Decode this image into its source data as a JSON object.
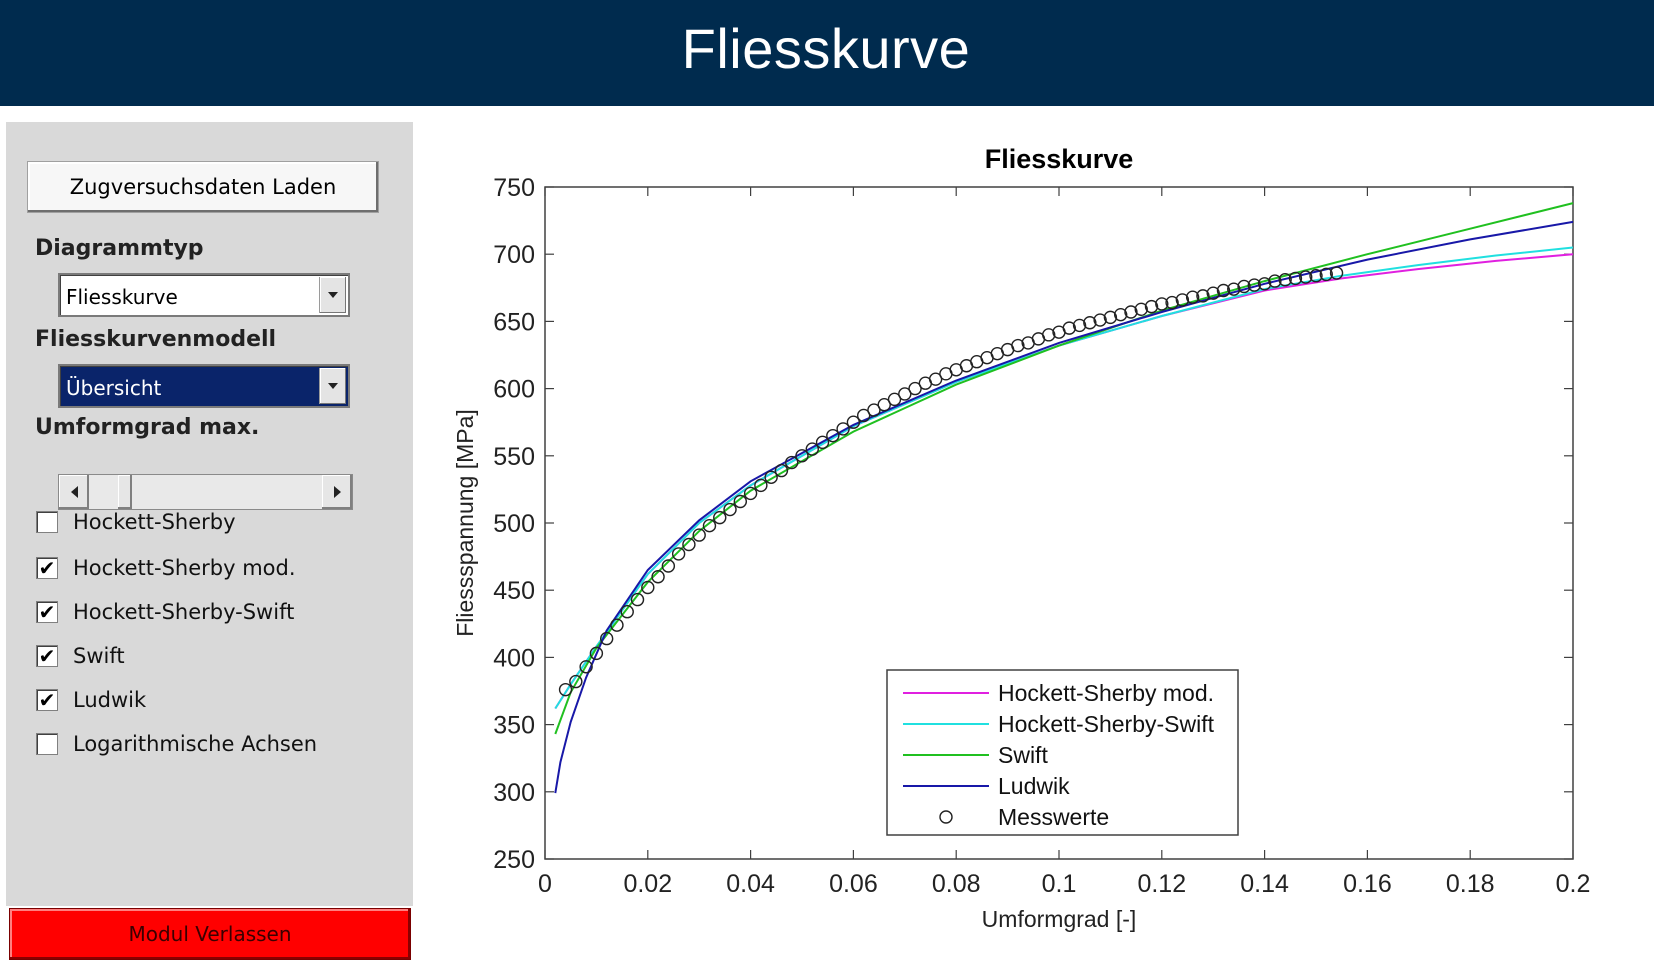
{
  "app": {
    "title": "Fliesskurve"
  },
  "sidebar": {
    "load_button": "Zugversuchsdaten Laden",
    "diagram_type_label": "Diagrammtyp",
    "diagram_type_value": "Fliesskurve",
    "model_label": "Fliesskurvenmodell",
    "model_value": "Übersicht",
    "strain_max_label": "Umformgrad max.",
    "strain_max_slider_value": 0.13,
    "checkboxes": [
      {
        "label": "Hockett-Sherby",
        "checked": false
      },
      {
        "label": "Hockett-Sherby mod.",
        "checked": true
      },
      {
        "label": "Hockett-Sherby-Swift",
        "checked": true
      },
      {
        "label": "Swift",
        "checked": true
      },
      {
        "label": "Ludwik",
        "checked": true
      },
      {
        "label": "Logarithmische Achsen",
        "checked": false
      }
    ],
    "exit_button": "Modul Verlassen"
  },
  "chart_data": {
    "type": "line",
    "title": "Fliesskurve",
    "xlabel": "Umformgrad [-]",
    "ylabel": "Fliessspannung [MPa]",
    "xlim": [
      0,
      0.2
    ],
    "ylim": [
      250,
      750
    ],
    "xticks": [
      "0",
      "0.02",
      "0.04",
      "0.06",
      "0.08",
      "0.1",
      "0.12",
      "0.14",
      "0.16",
      "0.18",
      "0.2"
    ],
    "yticks": [
      "250",
      "300",
      "350",
      "400",
      "450",
      "500",
      "550",
      "600",
      "650",
      "700",
      "750"
    ],
    "grid": false,
    "legend_position": "bottom-center",
    "series": [
      {
        "name": "Hockett-Sherby mod.",
        "color": "#e020e0",
        "x": [
          0.002,
          0.005,
          0.01,
          0.02,
          0.03,
          0.04,
          0.06,
          0.08,
          0.1,
          0.12,
          0.14,
          0.155,
          0.17,
          0.185,
          0.2
        ],
        "y": [
          362,
          380,
          408,
          462,
          500,
          528,
          572,
          605,
          632,
          654,
          673,
          682,
          689,
          695,
          700
        ]
      },
      {
        "name": "Hockett-Sherby-Swift",
        "color": "#20e0e0",
        "x": [
          0.002,
          0.005,
          0.01,
          0.02,
          0.03,
          0.04,
          0.06,
          0.08,
          0.1,
          0.12,
          0.14,
          0.155,
          0.17,
          0.185,
          0.2
        ],
        "y": [
          362,
          380,
          408,
          462,
          500,
          528,
          572,
          605,
          632,
          654,
          674,
          684,
          692,
          699,
          705
        ]
      },
      {
        "name": "Swift",
        "color": "#20c020",
        "x": [
          0.002,
          0.005,
          0.01,
          0.02,
          0.03,
          0.04,
          0.06,
          0.08,
          0.1,
          0.12,
          0.14,
          0.16,
          0.18,
          0.2
        ],
        "y": [
          343,
          374,
          407,
          456,
          494,
          524,
          568,
          603,
          632,
          658,
          680,
          700,
          719,
          738
        ]
      },
      {
        "name": "Ludwik",
        "color": "#1818a8",
        "x": [
          0.002,
          0.003,
          0.005,
          0.008,
          0.012,
          0.02,
          0.03,
          0.04,
          0.06,
          0.08,
          0.1,
          0.12,
          0.14,
          0.16,
          0.18,
          0.2
        ],
        "y": [
          299,
          322,
          352,
          385,
          420,
          465,
          502,
          531,
          573,
          606,
          634,
          657,
          678,
          696,
          711,
          724
        ]
      }
    ],
    "measured": {
      "name": "Messwerte",
      "marker": "circle",
      "x": [
        0.004,
        0.006,
        0.008,
        0.01,
        0.012,
        0.014,
        0.016,
        0.018,
        0.02,
        0.022,
        0.024,
        0.026,
        0.028,
        0.03,
        0.032,
        0.034,
        0.036,
        0.038,
        0.04,
        0.042,
        0.044,
        0.046,
        0.048,
        0.05,
        0.052,
        0.054,
        0.056,
        0.058,
        0.06,
        0.062,
        0.064,
        0.066,
        0.068,
        0.07,
        0.072,
        0.074,
        0.076,
        0.078,
        0.08,
        0.082,
        0.084,
        0.086,
        0.088,
        0.09,
        0.092,
        0.094,
        0.096,
        0.098,
        0.1,
        0.102,
        0.104,
        0.106,
        0.108,
        0.11,
        0.112,
        0.114,
        0.116,
        0.118,
        0.12,
        0.122,
        0.124,
        0.126,
        0.128,
        0.13,
        0.132,
        0.134,
        0.136,
        0.138,
        0.14,
        0.142,
        0.144,
        0.146,
        0.148,
        0.15,
        0.152,
        0.154
      ],
      "y": [
        376,
        382,
        393,
        403,
        414,
        424,
        434,
        443,
        452,
        460,
        468,
        477,
        484,
        491,
        498,
        504,
        510,
        516,
        522,
        528,
        534,
        539,
        545,
        550,
        555,
        560,
        565,
        570,
        575,
        580,
        584,
        588,
        592,
        596,
        600,
        604,
        607,
        611,
        614,
        617,
        620,
        623,
        626,
        629,
        632,
        634,
        637,
        640,
        642,
        645,
        647,
        649,
        651,
        653,
        655,
        657,
        659,
        661,
        663,
        664,
        666,
        668,
        669,
        671,
        673,
        674,
        676,
        677,
        678,
        680,
        681,
        682,
        683,
        684,
        685,
        686
      ]
    }
  },
  "colors": {
    "header_bg": "#002b4e",
    "panel_bg": "#d9d9d9",
    "exit_button_bg": "#ff0000",
    "dropdown_selected_bg": "#0a246a"
  }
}
